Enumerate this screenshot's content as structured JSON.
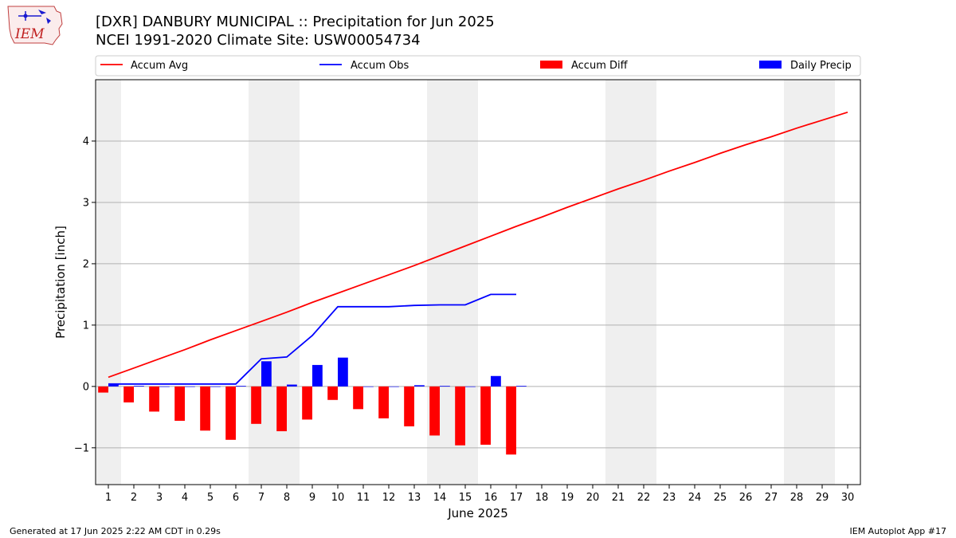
{
  "header": {
    "title_line1": "[DXR] DANBURY MUNICIPAL :: Precipitation for Jun 2025",
    "title_line2": "NCEI 1991-2020 Climate Site: USW00054734"
  },
  "logo": {
    "text": "IEM"
  },
  "footer": {
    "generated": "Generated at 17 Jun 2025 2:22 AM CDT in 0.29s",
    "app": "IEM Autoplot App #17"
  },
  "chart_data": {
    "type": "bar",
    "xlabel": "June 2025",
    "ylabel": "Precipitation [inch]",
    "ylim": [
      -1.6,
      5.0
    ],
    "xlim": [
      0.5,
      30.5
    ],
    "yticks": [
      -1,
      0,
      1,
      2,
      3,
      4
    ],
    "ytick_labels": [
      "−1",
      "0",
      "1",
      "2",
      "3",
      "4"
    ],
    "x_ticks": [
      1,
      2,
      3,
      4,
      5,
      6,
      7,
      8,
      9,
      10,
      11,
      12,
      13,
      14,
      15,
      16,
      17,
      18,
      19,
      20,
      21,
      22,
      23,
      24,
      25,
      26,
      27,
      28,
      29,
      30
    ],
    "grid": "horizontal",
    "weekend_shading": [
      1,
      7,
      8,
      14,
      15,
      21,
      22,
      28,
      29
    ],
    "legend": {
      "placement": "top",
      "entries": [
        {
          "label": "Accum Avg",
          "kind": "line",
          "color": "#ff0000"
        },
        {
          "label": "Accum Obs",
          "kind": "line",
          "color": "#0000ff"
        },
        {
          "label": "Accum Diff",
          "kind": "bar",
          "color": "#ff0000"
        },
        {
          "label": "Daily Precip",
          "kind": "bar",
          "color": "#0000ff"
        }
      ]
    },
    "series": [
      {
        "name": "Accum Avg",
        "type": "line",
        "color": "#ff0000",
        "x": [
          1,
          2,
          3,
          4,
          5,
          6,
          7,
          8,
          9,
          10,
          11,
          12,
          13,
          14,
          15,
          16,
          17,
          18,
          19,
          20,
          21,
          22,
          23,
          24,
          25,
          26,
          27,
          28,
          29,
          30
        ],
        "values": [
          0.15,
          0.3,
          0.45,
          0.6,
          0.76,
          0.91,
          1.06,
          1.21,
          1.37,
          1.52,
          1.67,
          1.82,
          1.97,
          2.13,
          2.29,
          2.45,
          2.61,
          2.76,
          2.92,
          3.07,
          3.22,
          3.36,
          3.51,
          3.65,
          3.8,
          3.94,
          4.07,
          4.21,
          4.34,
          4.47
        ]
      },
      {
        "name": "Accum Obs",
        "type": "line",
        "color": "#0000ff",
        "x": [
          1,
          2,
          3,
          4,
          5,
          6,
          7,
          8,
          9,
          10,
          11,
          12,
          13,
          14,
          15,
          16,
          17
        ],
        "values": [
          0.04,
          0.04,
          0.04,
          0.04,
          0.04,
          0.04,
          0.45,
          0.48,
          0.83,
          1.3,
          1.3,
          1.3,
          1.32,
          1.33,
          1.33,
          1.5,
          1.5
        ]
      },
      {
        "name": "Accum Diff",
        "type": "bar",
        "color": "#ff0000",
        "x": [
          1,
          2,
          3,
          4,
          5,
          6,
          7,
          8,
          9,
          10,
          11,
          12,
          13,
          14,
          15,
          16,
          17
        ],
        "values": [
          -0.1,
          -0.26,
          -0.41,
          -0.56,
          -0.72,
          -0.87,
          -0.61,
          -0.73,
          -0.54,
          -0.22,
          -0.37,
          -0.52,
          -0.65,
          -0.8,
          -0.96,
          -0.95,
          -1.11
        ]
      },
      {
        "name": "Daily Precip",
        "type": "bar",
        "color": "#0000ff",
        "x": [
          1,
          2,
          3,
          4,
          5,
          6,
          7,
          8,
          9,
          10,
          11,
          12,
          13,
          14,
          15,
          16,
          17
        ],
        "values": [
          0.04,
          0.01,
          0,
          0,
          0,
          0.01,
          0.41,
          0.03,
          0.35,
          0.47,
          0,
          0,
          0.02,
          0.01,
          0,
          0.17,
          0.01
        ]
      }
    ]
  }
}
